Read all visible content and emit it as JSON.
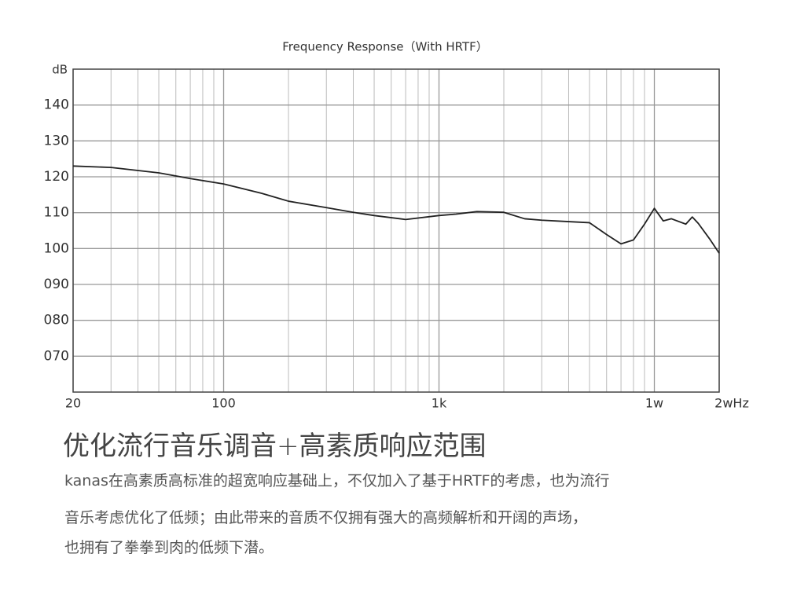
{
  "chart_data": {
    "type": "line",
    "title": "Frequency Response（With HRTF）",
    "y_label": "dB",
    "x": [
      20,
      30,
      50,
      70,
      100,
      150,
      200,
      300,
      400,
      500,
      700,
      1000,
      1200,
      1500,
      2000,
      2500,
      3000,
      4000,
      5000,
      6000,
      7000,
      8000,
      9000,
      10000,
      11000,
      12000,
      14000,
      15000,
      16000,
      18000,
      20000
    ],
    "series": [
      {
        "name": "Frequency Response",
        "color": "#222222",
        "values": [
          123.0,
          122.6,
          121.1,
          119.5,
          118.0,
          115.4,
          113.2,
          111.4,
          110.1,
          109.2,
          108.1,
          109.2,
          109.6,
          110.3,
          110.1,
          108.3,
          107.9,
          107.5,
          107.2,
          103.9,
          101.3,
          102.4,
          106.8,
          111.2,
          107.7,
          108.3,
          106.8,
          108.8,
          107.0,
          102.8,
          98.7
        ]
      }
    ],
    "xlim": [
      20,
      20000
    ],
    "x_log": true,
    "xticks": [
      20,
      100,
      {
        "value": 1000,
        "label": "1k"
      },
      {
        "value": 10000,
        "label": "1w"
      },
      {
        "value": 20000,
        "label": "2wHz"
      }
    ],
    "minor_xticks": [
      30,
      40,
      50,
      60,
      70,
      80,
      90,
      200,
      300,
      400,
      500,
      600,
      700,
      800,
      900,
      2000,
      3000,
      4000,
      5000,
      6000,
      7000,
      8000,
      9000
    ],
    "ylim": [
      60,
      150
    ],
    "yticks": [
      {
        "value": 70,
        "label": "070"
      },
      {
        "value": 80,
        "label": "080"
      },
      {
        "value": 90,
        "label": "090"
      },
      100,
      110,
      120,
      130,
      140
    ],
    "grid": true
  },
  "text": {
    "heading": "优化流行音乐调音+高素质响应范围",
    "paragraph": [
      "kanas在高素质高标准的超宽响应基础上，不仅加入了基于HRTF的考虑，也为流行",
      "音乐考虑优化了低频；由此带来的音质不仅拥有强大的高频解析和开阔的声场，",
      "也拥有了拳拳到肉的低频下潜。"
    ]
  }
}
